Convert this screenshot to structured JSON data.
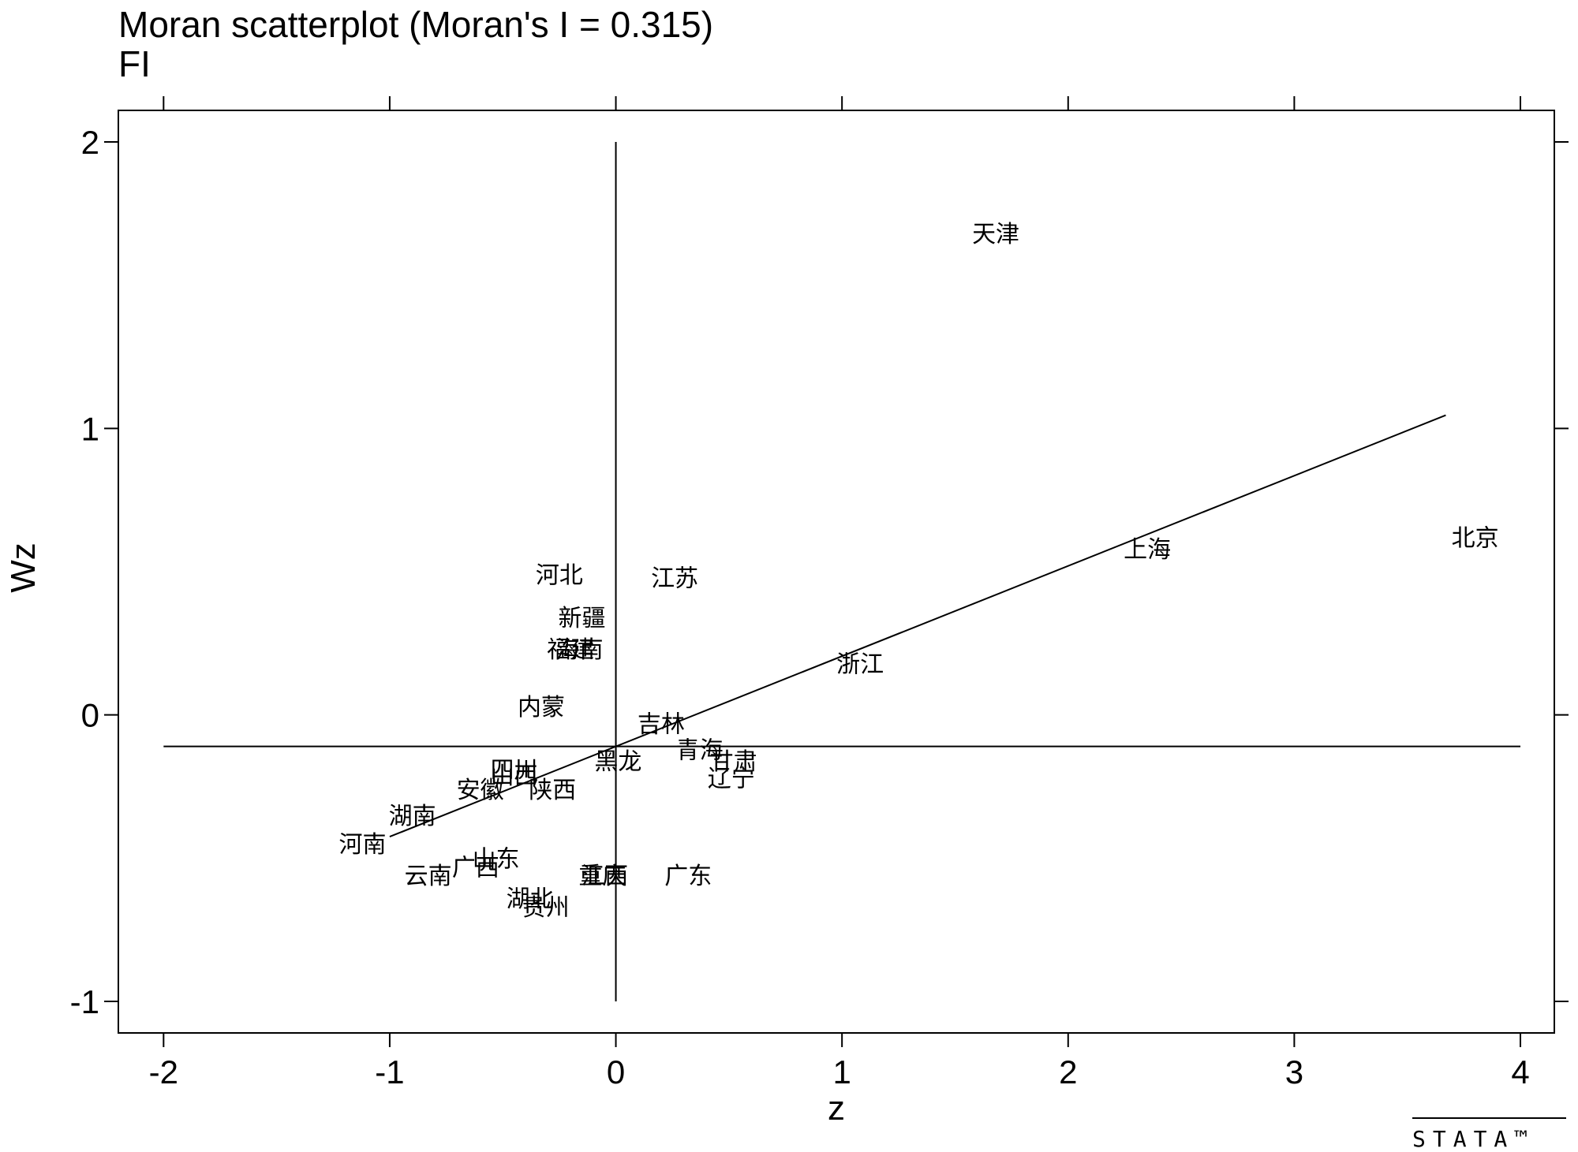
{
  "chart_data": {
    "type": "scatter",
    "title": "Moran scatterplot (Moran's I = 0.315)",
    "subtitle": "FI",
    "xlabel": "z",
    "ylabel": "Wz",
    "xlim": [
      -2.2,
      4.15
    ],
    "ylim": [
      -1.11,
      2.11
    ],
    "xticks": [
      -2,
      -1,
      0,
      1,
      2,
      3,
      4
    ],
    "yticks": [
      -1,
      0,
      1,
      2
    ],
    "xtick_labels": [
      "-2",
      "-1",
      "0",
      "1",
      "2",
      "3",
      "4"
    ],
    "ytick_labels": [
      "-1",
      "0",
      "1",
      "2"
    ],
    "reference_lines": {
      "x0": 0,
      "y0": -0.11,
      "x_range": [
        -2,
        4
      ],
      "y_range": [
        -1,
        2
      ]
    },
    "fit_line": {
      "slope": 0.315,
      "intercept": -0.11,
      "x_range": [
        -1.0,
        3.67
      ]
    },
    "points": [
      {
        "label": "天津",
        "x": 1.68,
        "y": 1.68
      },
      {
        "label": "北京",
        "x": 3.8,
        "y": 0.62
      },
      {
        "label": "上海",
        "x": 2.35,
        "y": 0.58
      },
      {
        "label": "浙江",
        "x": 1.08,
        "y": 0.18
      },
      {
        "label": "河北",
        "x": -0.25,
        "y": 0.49
      },
      {
        "label": "江苏",
        "x": 0.26,
        "y": 0.48
      },
      {
        "label": "新疆",
        "x": -0.15,
        "y": 0.34
      },
      {
        "label": "福建",
        "x": -0.2,
        "y": 0.23
      },
      {
        "label": "海南",
        "x": -0.16,
        "y": 0.23
      },
      {
        "label": "内蒙",
        "x": -0.33,
        "y": 0.03
      },
      {
        "label": "吉林",
        "x": 0.2,
        "y": -0.03
      },
      {
        "label": "青海",
        "x": 0.37,
        "y": -0.12
      },
      {
        "label": "甘肃",
        "x": 0.52,
        "y": -0.16
      },
      {
        "label": "辽宁",
        "x": 0.51,
        "y": -0.22
      },
      {
        "label": "黑龙",
        "x": 0.01,
        "y": -0.16
      },
      {
        "label": "四川",
        "x": -0.45,
        "y": -0.19
      },
      {
        "label": "山西",
        "x": -0.45,
        "y": -0.21
      },
      {
        "label": "陕西",
        "x": -0.28,
        "y": -0.26
      },
      {
        "label": "安徽",
        "x": -0.6,
        "y": -0.26
      },
      {
        "label": "湖南",
        "x": -0.9,
        "y": -0.35
      },
      {
        "label": "河南",
        "x": -1.12,
        "y": -0.45
      },
      {
        "label": "山东",
        "x": -0.53,
        "y": -0.5
      },
      {
        "label": "广西",
        "x": -0.62,
        "y": -0.53
      },
      {
        "label": "云南",
        "x": -0.83,
        "y": -0.56
      },
      {
        "label": "重庆",
        "x": -0.06,
        "y": -0.56
      },
      {
        "label": "江西",
        "x": -0.05,
        "y": -0.56
      },
      {
        "label": "广东",
        "x": 0.32,
        "y": -0.56
      },
      {
        "label": "湖北",
        "x": -0.38,
        "y": -0.64
      },
      {
        "label": "贵州",
        "x": -0.31,
        "y": -0.67
      }
    ]
  },
  "logo": {
    "text": "STATA™"
  }
}
